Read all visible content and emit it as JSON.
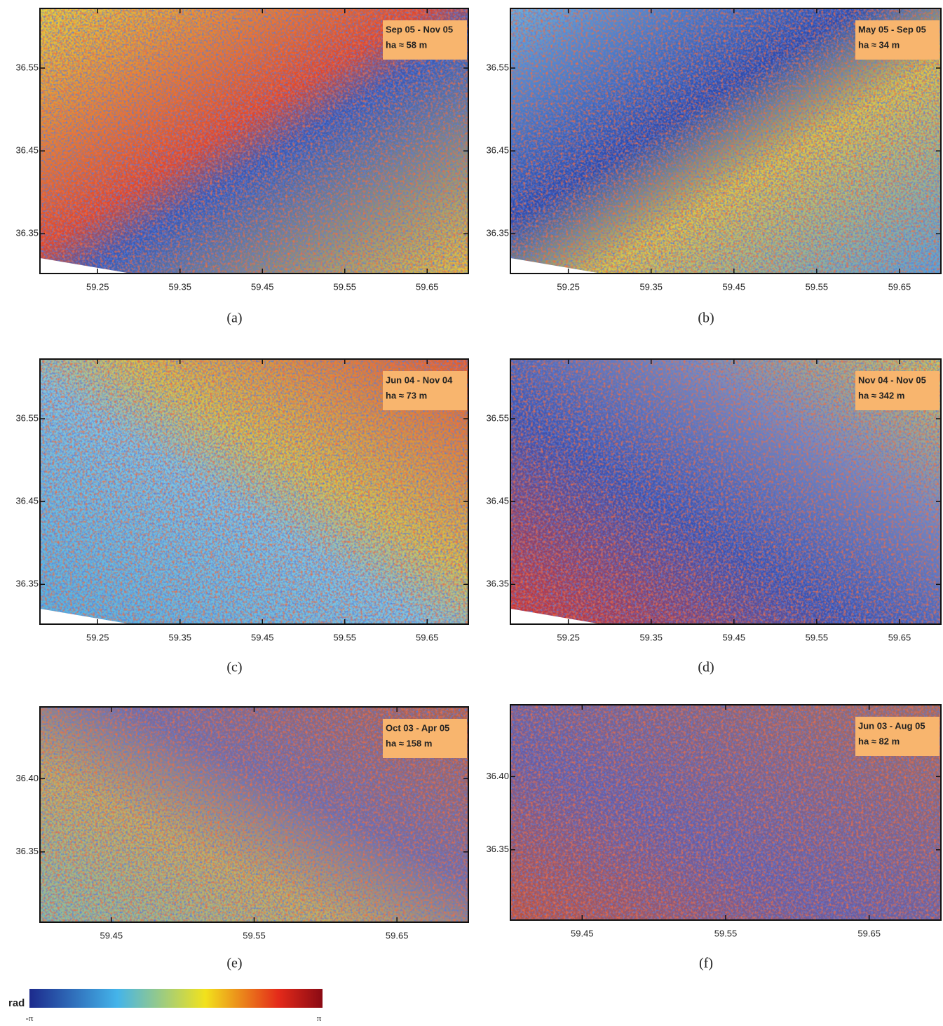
{
  "figure": {
    "panels": [
      {
        "label": "(a)",
        "dates": "Sep 05 - Nov 05",
        "baseline": "ha ≈ 58 m",
        "xlim": [
          59.18,
          59.7
        ],
        "ylim": [
          36.302,
          36.622
        ],
        "xticks": [
          59.25,
          59.35,
          59.45,
          59.55,
          59.65
        ],
        "yticks": [
          36.35,
          36.45,
          36.55
        ]
      },
      {
        "label": "(b)",
        "dates": "May 05 - Sep 05",
        "baseline": "ha ≈ 34 m",
        "xlim": [
          59.18,
          59.7
        ],
        "ylim": [
          36.302,
          36.622
        ],
        "xticks": [
          59.25,
          59.35,
          59.45,
          59.55,
          59.65
        ],
        "yticks": [
          36.35,
          36.45,
          36.55
        ]
      },
      {
        "label": "(c)",
        "dates": "Jun 04 - Nov 04",
        "baseline": "ha ≈ 73 m",
        "xlim": [
          59.18,
          59.7
        ],
        "ylim": [
          36.302,
          36.622
        ],
        "xticks": [
          59.25,
          59.35,
          59.45,
          59.55,
          59.65
        ],
        "yticks": [
          36.35,
          36.45,
          36.55
        ]
      },
      {
        "label": "(d)",
        "dates": "Nov 04 - Nov 05",
        "baseline": "ha ≈ 342 m",
        "xlim": [
          59.18,
          59.7
        ],
        "ylim": [
          36.302,
          36.622
        ],
        "xticks": [
          59.25,
          59.35,
          59.45,
          59.55,
          59.65
        ],
        "yticks": [
          36.35,
          36.45,
          36.55
        ]
      },
      {
        "label": "(e)",
        "dates": "Oct 03 - Apr 05",
        "baseline": "ha ≈ 158 m",
        "xlim": [
          59.4,
          59.7
        ],
        "ylim": [
          36.302,
          36.449
        ],
        "xticks": [
          59.45,
          59.55,
          59.65
        ],
        "yticks": [
          {
            "value": 36.35,
            "label": "36.35"
          },
          {
            "value": 36.4,
            "label": "36.40"
          }
        ]
      },
      {
        "label": "(f)",
        "dates": "Jun 03 - Aug 05",
        "baseline": "ha ≈ 82 m",
        "xlim": [
          59.4,
          59.7
        ],
        "ylim": [
          36.302,
          36.449
        ],
        "xticks": [
          59.45,
          59.55,
          59.65
        ],
        "yticks": [
          {
            "value": 36.35,
            "label": "36.35"
          },
          {
            "value": 36.4,
            "label": "36.40"
          }
        ]
      }
    ],
    "colorbar": {
      "unit": "rad",
      "min_label": "-π",
      "max_label": "π"
    }
  }
}
